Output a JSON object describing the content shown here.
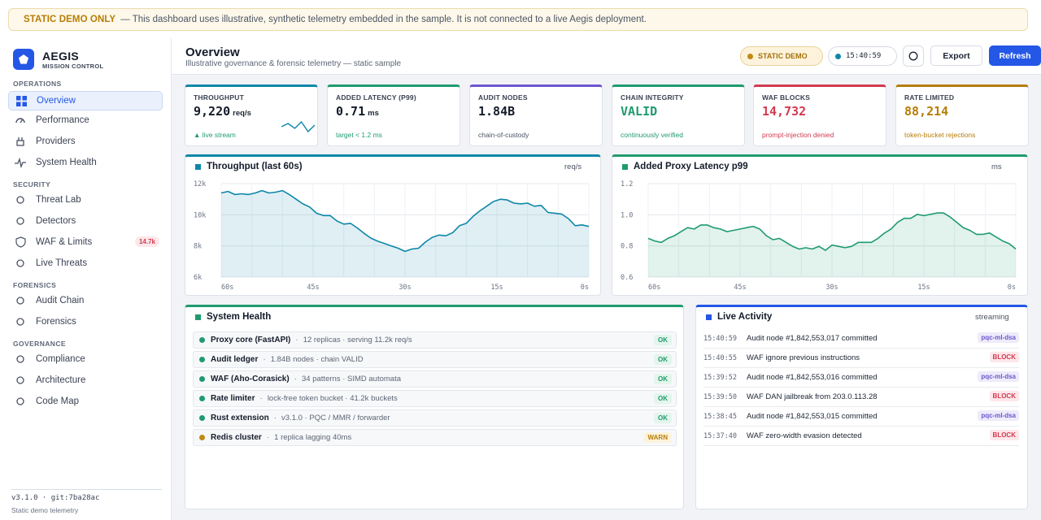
{
  "banner": {
    "tag": "STATIC DEMO ONLY",
    "text": "— This dashboard uses illustrative, synthetic telemetry embedded in the sample. It is not connected to a live Aegis deployment."
  },
  "brand": {
    "title": "AEGIS",
    "subtitle": "MISSION CONTROL"
  },
  "sidebar": {
    "sections": [
      {
        "label": "OPERATIONS",
        "items": [
          {
            "label": "Overview",
            "icon": "grid-icon",
            "active": true
          },
          {
            "label": "Performance",
            "icon": "gauge-icon"
          },
          {
            "label": "Providers",
            "icon": "plug-icon"
          },
          {
            "label": "System Health",
            "icon": "pulse-icon"
          }
        ]
      },
      {
        "label": "SECURITY",
        "items": [
          {
            "label": "Threat Lab",
            "icon": "circle-icon"
          },
          {
            "label": "Detectors",
            "icon": "circle-icon"
          },
          {
            "label": "WAF & Limits",
            "icon": "shield-icon",
            "badge": "14.7k"
          },
          {
            "label": "Live Threats",
            "icon": "circle-icon"
          }
        ]
      },
      {
        "label": "FORENSICS",
        "items": [
          {
            "label": "Audit Chain",
            "icon": "circle-icon"
          },
          {
            "label": "Forensics",
            "icon": "circle-icon"
          }
        ]
      },
      {
        "label": "GOVERNANCE",
        "items": [
          {
            "label": "Compliance",
            "icon": "circle-icon"
          },
          {
            "label": "Architecture",
            "icon": "circle-icon"
          },
          {
            "label": "Code Map",
            "icon": "circle-icon"
          }
        ]
      }
    ],
    "footer": {
      "version": "v3.1.0 · git:7ba28ac",
      "note": "Static demo telemetry"
    }
  },
  "header": {
    "title": "Overview",
    "subtitle": "Illustrative governance & forensic telemetry — static sample",
    "demo_pill": "STATIC DEMO",
    "clock": "15:40:59",
    "export_label": "Export",
    "refresh_label": "Refresh"
  },
  "colors": {
    "accent": "#2457e6",
    "teal": "#0e87a8",
    "green": "#1f9b6e",
    "purple": "#6e56cf",
    "red": "#d23a4f",
    "amber": "#b77d06"
  },
  "kpis": [
    {
      "label": "THROUGHPUT",
      "value": "9,220",
      "unit": "req/s",
      "sub": "▲ live stream",
      "color": "#0e87a8",
      "value_color": "#141b2a",
      "sub_color": "#1f9b6e",
      "sparkline": [
        6,
        8,
        5,
        9,
        3,
        7
      ]
    },
    {
      "label": "ADDED LATENCY (P99)",
      "value": "0.71",
      "unit": "ms",
      "sub": "target < 1.2 ms",
      "color": "#1f9b6e",
      "value_color": "#141b2a",
      "sub_color": "#1f9b6e"
    },
    {
      "label": "AUDIT NODES",
      "value": "1.84B",
      "unit": "",
      "sub": "chain-of-custody",
      "color": "#6e56cf",
      "value_color": "#141b2a",
      "sub_color": "#4b5363"
    },
    {
      "label": "CHAIN INTEGRITY",
      "value": "VALID",
      "unit": "",
      "sub": "continuously verified",
      "color": "#1f9b6e",
      "value_color": "#1f9b6e",
      "sub_color": "#1f9b6e"
    },
    {
      "label": "WAF BLOCKS",
      "value": "14,732",
      "unit": "",
      "sub": "prompt-injection denied",
      "color": "#d23a4f",
      "value_color": "#d23a4f",
      "sub_color": "#d23a4f"
    },
    {
      "label": "RATE LIMITED",
      "value": "88,214",
      "unit": "",
      "sub": "token-bucket rejections",
      "color": "#b77d06",
      "value_color": "#b77d06",
      "sub_color": "#b77d06"
    }
  ],
  "chart_data": [
    {
      "type": "area",
      "title": "Throughput (last 60s)",
      "unit_label": "req/s",
      "color": "#0e87a8",
      "x_ticks": [
        "60s",
        "45s",
        "30s",
        "15s",
        "0s"
      ],
      "y_ticks": [
        "12k",
        "10k",
        "8k",
        "6k"
      ],
      "ylim": [
        6000,
        12000
      ],
      "grid": true,
      "values": [
        11400,
        11500,
        11300,
        11350,
        11300,
        11400,
        11550,
        11400,
        11450,
        11550,
        11300,
        11000,
        10700,
        10500,
        10100,
        9950,
        9950,
        9600,
        9400,
        9450,
        9150,
        8800,
        8500,
        8300,
        8150,
        8000,
        7850,
        7650,
        7800,
        7850,
        8250,
        8550,
        8700,
        8650,
        8850,
        9300,
        9450,
        9900,
        10250,
        10550,
        10850,
        11000,
        10950,
        10750,
        10700,
        10750,
        10550,
        10600,
        10150,
        10100,
        10050,
        9750,
        9300,
        9350,
        9250
      ]
    },
    {
      "type": "area",
      "title": "Added Proxy Latency p99",
      "unit_label": "ms",
      "color": "#1f9b6e",
      "x_ticks": [
        "60s",
        "45s",
        "30s",
        "15s",
        "0s"
      ],
      "y_ticks": [
        "1.2",
        "1.0",
        "0.8",
        "0.6"
      ],
      "ylim": [
        0.5,
        1.2
      ],
      "grid": true,
      "values": [
        0.79,
        0.77,
        0.76,
        0.79,
        0.81,
        0.84,
        0.87,
        0.86,
        0.89,
        0.89,
        0.87,
        0.86,
        0.84,
        0.85,
        0.86,
        0.87,
        0.88,
        0.86,
        0.81,
        0.78,
        0.79,
        0.76,
        0.73,
        0.71,
        0.72,
        0.71,
        0.73,
        0.7,
        0.74,
        0.73,
        0.72,
        0.73,
        0.76,
        0.76,
        0.76,
        0.79,
        0.83,
        0.86,
        0.91,
        0.94,
        0.94,
        0.97,
        0.96,
        0.97,
        0.98,
        0.98,
        0.95,
        0.91,
        0.87,
        0.85,
        0.82,
        0.82,
        0.83,
        0.8,
        0.77,
        0.75,
        0.71
      ]
    }
  ],
  "system_health": {
    "title": "System Health",
    "rows": [
      {
        "name": "Proxy core (FastAPI)",
        "detail": "12 replicas · serving 11.2k req/s",
        "status": "OK"
      },
      {
        "name": "Audit ledger",
        "detail": "1.84B nodes · chain VALID",
        "status": "OK"
      },
      {
        "name": "WAF (Aho-Corasick)",
        "detail": "34 patterns · SIMD automata",
        "status": "OK"
      },
      {
        "name": "Rate limiter",
        "detail": "lock-free token bucket · 41.2k buckets",
        "status": "OK"
      },
      {
        "name": "Rust extension",
        "detail": "v3.1.0 · PQC / MMR / forwarder",
        "status": "OK"
      },
      {
        "name": "Redis cluster",
        "detail": "1 replica lagging 40ms",
        "status": "WARN"
      }
    ]
  },
  "live_activity": {
    "title": "Live Activity",
    "status": "streaming",
    "rows": [
      {
        "time": "15:40:59",
        "text": "Audit node #1,842,553,017 committed",
        "tag": "pqc-ml-dsa"
      },
      {
        "time": "15:40:55",
        "text": "WAF ignore previous instructions",
        "tag": "BLOCK"
      },
      {
        "time": "15:39:52",
        "text": "Audit node #1,842,553,016 committed",
        "tag": "pqc-ml-dsa"
      },
      {
        "time": "15:39:50",
        "text": "WAF DAN jailbreak from 203.0.113.28",
        "tag": "BLOCK"
      },
      {
        "time": "15:38:45",
        "text": "Audit node #1,842,553,015 committed",
        "tag": "pqc-ml-dsa"
      },
      {
        "time": "15:37:40",
        "text": "WAF zero-width evasion detected",
        "tag": "BLOCK"
      }
    ]
  }
}
